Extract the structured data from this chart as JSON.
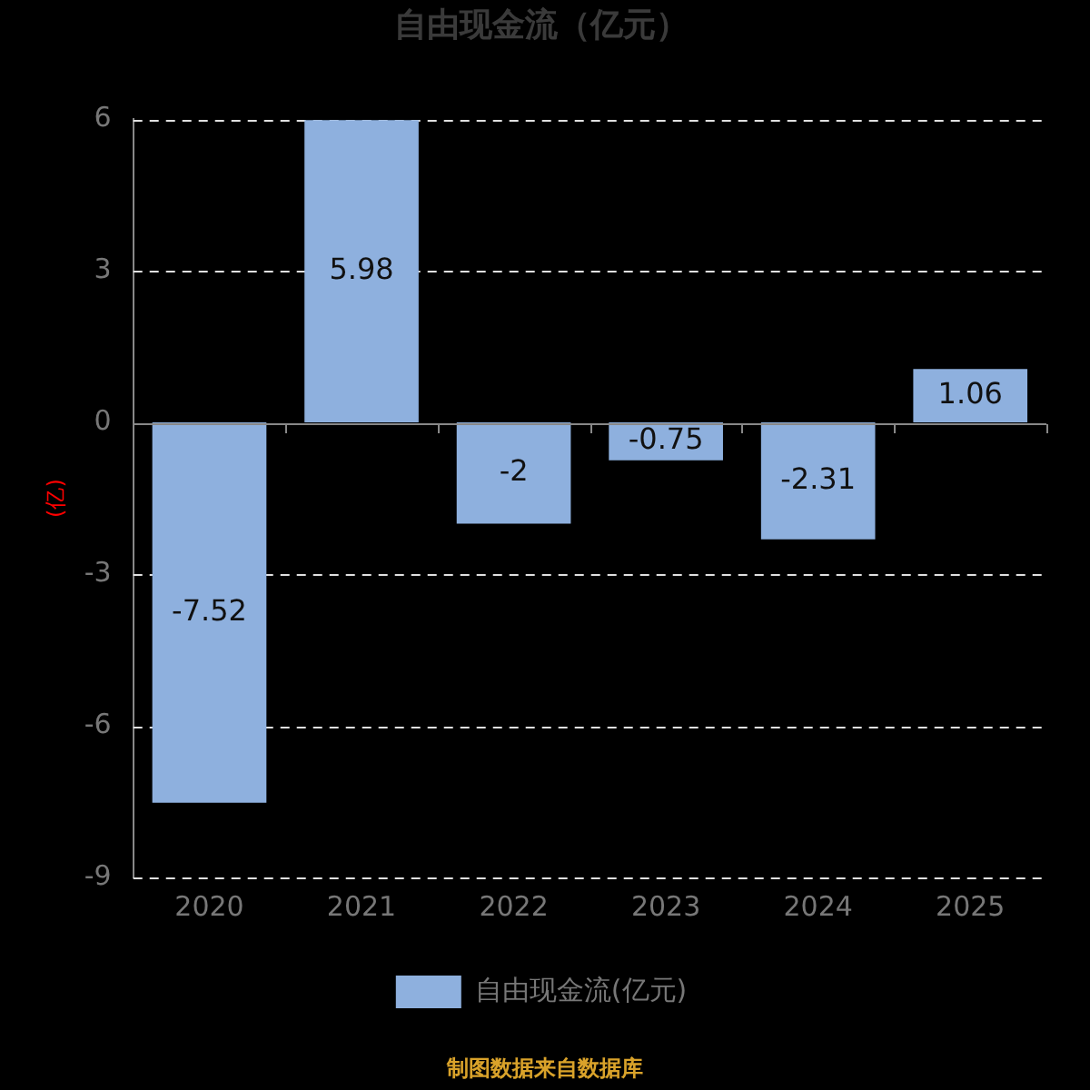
{
  "chart_data": {
    "type": "bar",
    "title": "自由现金流（亿元）",
    "ylabel": "(亿)",
    "categories": [
      "2020",
      "2021",
      "2022",
      "2023",
      "2024",
      "2025"
    ],
    "series": [
      {
        "name": "自由现金流(亿元)",
        "color": "#8eb0de",
        "values": [
          -7.52,
          5.98,
          -2,
          -0.75,
          -2.31,
          1.06
        ]
      }
    ],
    "ylim": [
      -9,
      6
    ],
    "yticks": [
      -9,
      -6,
      -3,
      0,
      3,
      6
    ],
    "grid": "y",
    "legend": "bottom",
    "data_labels": true,
    "annotations": [
      "制图数据来自数据库"
    ]
  }
}
